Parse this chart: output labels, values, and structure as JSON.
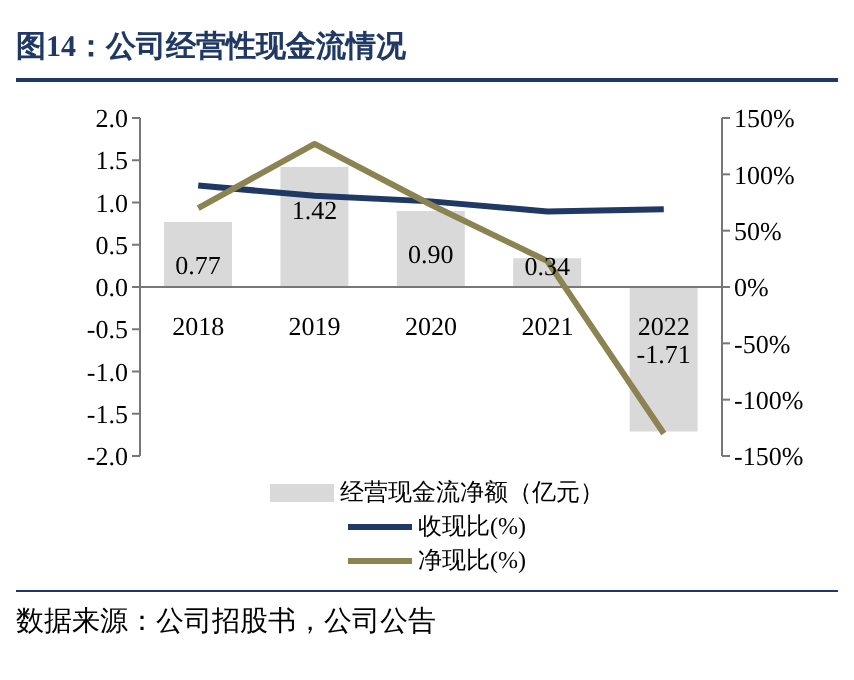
{
  "chart_data": {
    "type": "bar",
    "title": "图14：公司经营性现金流情况",
    "categories": [
      "2018",
      "2019",
      "2020",
      "2021",
      "2022"
    ],
    "series": [
      {
        "name": "经营现金流净额（亿元）",
        "color": "#d9d9d9",
        "values": [
          0.77,
          1.42,
          0.9,
          0.34,
          -1.71
        ],
        "value_labels": [
          "0.77",
          "1.42",
          "0.90",
          "0.34",
          "-1.71"
        ]
      },
      {
        "name": "收现比(%)",
        "type": "line",
        "axis": "y2",
        "color": "#1f3864",
        "values": [
          90,
          81,
          76,
          67,
          69
        ]
      },
      {
        "name": "净现比(%)",
        "type": "line",
        "axis": "y2",
        "color": "#8b8352",
        "values": [
          70,
          127,
          73,
          23,
          -130
        ]
      }
    ],
    "ylim": [
      -2,
      2
    ],
    "yticks": [
      {
        "value": 2,
        "label": "2.0"
      },
      1.5,
      {
        "value": 1,
        "label": "1.0"
      },
      0.5,
      {
        "value": 0,
        "label": "0.0"
      },
      -0.5,
      {
        "value": -1,
        "label": "-1.0"
      },
      -1.5,
      {
        "value": -2,
        "label": "-2.0"
      }
    ],
    "y2lim": [
      -150,
      150
    ],
    "y2ticks": [
      {
        "value": 150,
        "label": "150%"
      },
      {
        "value": 100,
        "label": "100%"
      },
      {
        "value": 50,
        "label": "50%"
      },
      {
        "value": 0,
        "label": "0%"
      },
      {
        "value": -50,
        "label": "-50%"
      },
      {
        "value": -100,
        "label": "-100%"
      },
      {
        "value": -150,
        "label": "-150%"
      }
    ],
    "grid": false,
    "legend": "bottom",
    "marker": "none",
    "annotations": [
      "数据来源：公司招股书，公司公告"
    ]
  }
}
